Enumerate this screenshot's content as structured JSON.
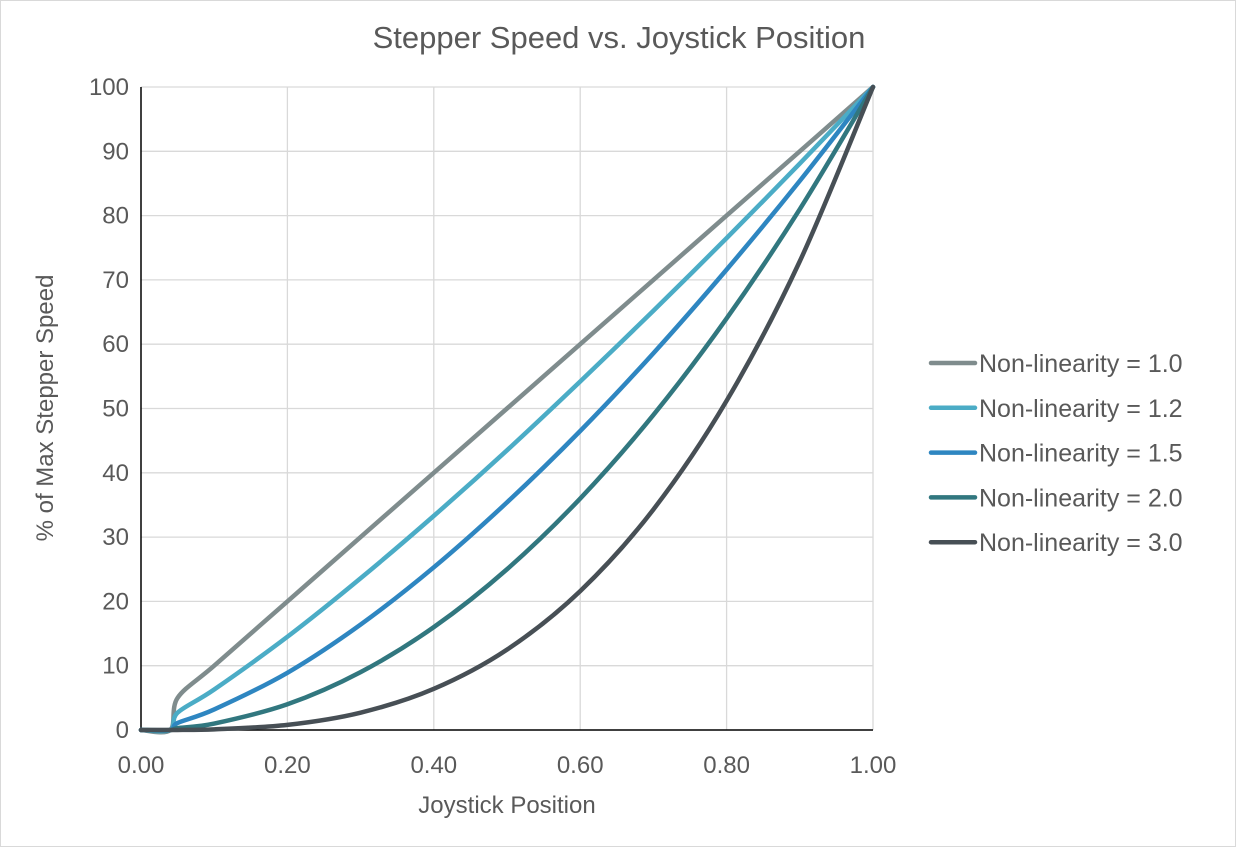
{
  "chart_data": {
    "type": "line",
    "title": "Stepper Speed vs. Joystick Position",
    "xlabel": "Joystick Position",
    "ylabel": "% of Max Stepper Speed",
    "xlim": [
      0,
      1
    ],
    "ylim": [
      0,
      100
    ],
    "xticks": [
      "0.00",
      "0.20",
      "0.40",
      "0.60",
      "0.80",
      "1.00"
    ],
    "yticks": [
      "0",
      "10",
      "20",
      "30",
      "40",
      "50",
      "60",
      "70",
      "80",
      "90",
      "100"
    ],
    "grid": true,
    "legend_position": "right",
    "x": [
      0,
      0.04,
      0.05,
      0.1,
      0.2,
      0.3,
      0.4,
      0.5,
      0.6,
      0.7,
      0.8,
      0.9,
      1.0
    ],
    "series": [
      {
        "name": "Non-linearity = 1.0",
        "color": "#7f8c8d",
        "values": [
          0,
          0,
          5,
          10,
          20,
          30,
          40,
          50,
          60,
          70,
          80,
          90,
          100
        ]
      },
      {
        "name": "Non-linearity = 1.2",
        "color": "#4bacc6",
        "values": [
          0,
          0,
          2.7,
          6.3,
          14.5,
          23.6,
          33.3,
          43.5,
          54.2,
          65.2,
          76.5,
          88.1,
          100
        ]
      },
      {
        "name": "Non-linearity = 1.5",
        "color": "#2e86c1",
        "values": [
          0,
          0,
          1.1,
          3.2,
          8.9,
          16.4,
          25.3,
          35.4,
          46.5,
          58.6,
          71.6,
          85.4,
          100
        ]
      },
      {
        "name": "Non-linearity = 2.0",
        "color": "#31777f",
        "values": [
          0,
          0,
          0.3,
          1.0,
          4.0,
          9.0,
          16.0,
          25.0,
          36.0,
          49.0,
          64.0,
          81.0,
          100
        ]
      },
      {
        "name": "Non-linearity = 3.0",
        "color": "#474f55",
        "values": [
          0,
          0,
          0.01,
          0.1,
          0.8,
          2.7,
          6.4,
          12.5,
          21.6,
          34.3,
          51.2,
          72.9,
          100
        ]
      }
    ]
  }
}
